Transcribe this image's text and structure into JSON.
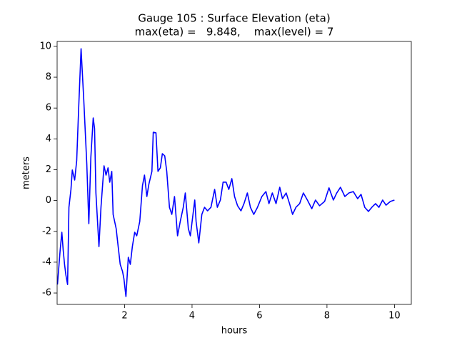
{
  "chart_data": {
    "type": "line",
    "title": [
      "Gauge 105 : Surface Elevation (eta)",
      "max(eta) =   9.848,    max(level) = 7"
    ],
    "xlabel": "hours",
    "ylabel": "meters",
    "x": [
      0.01,
      0.09,
      0.14,
      0.18,
      0.22,
      0.26,
      0.31,
      0.35,
      0.41,
      0.45,
      0.52,
      0.58,
      0.64,
      0.71,
      0.79,
      0.88,
      0.94,
      1.0,
      1.07,
      1.11,
      1.15,
      1.24,
      1.3,
      1.39,
      1.45,
      1.51,
      1.56,
      1.62,
      1.66,
      1.75,
      1.81,
      1.87,
      1.94,
      1.98,
      2.04,
      2.11,
      2.17,
      2.23,
      2.3,
      2.36,
      2.45,
      2.53,
      2.59,
      2.66,
      2.72,
      2.81,
      2.85,
      2.93,
      2.99,
      3.06,
      3.12,
      3.19,
      3.25,
      3.33,
      3.4,
      3.48,
      3.57,
      3.65,
      3.74,
      3.8,
      3.89,
      3.95,
      4.08,
      4.12,
      4.2,
      4.29,
      4.37,
      4.46,
      4.56,
      4.67,
      4.75,
      4.84,
      4.92,
      5.01,
      5.09,
      5.18,
      5.26,
      5.35,
      5.45,
      5.54,
      5.64,
      5.73,
      5.83,
      5.94,
      6.07,
      6.19,
      6.28,
      6.38,
      6.49,
      6.6,
      6.68,
      6.79,
      6.89,
      6.98,
      7.08,
      7.19,
      7.3,
      7.42,
      7.55,
      7.66,
      7.78,
      7.93,
      8.06,
      8.19,
      8.29,
      8.4,
      8.53,
      8.65,
      8.78,
      8.91,
      9.01,
      9.12,
      9.23,
      9.33,
      9.44,
      9.54,
      9.65,
      9.75,
      9.88,
      10.0
    ],
    "series": [
      {
        "color": "#0000ff",
        "values": [
          -5.45,
          -3.22,
          -2.06,
          -3.22,
          -4.14,
          -4.84,
          -5.45,
          -0.44,
          0.72,
          1.98,
          1.33,
          2.58,
          6.06,
          9.848,
          6.52,
          2.35,
          -1.5,
          2.81,
          5.36,
          4.67,
          0.49,
          -2.99,
          -0.44,
          2.25,
          1.65,
          2.12,
          1.19,
          1.89,
          -0.9,
          -1.82,
          -2.99,
          -4.14,
          -4.61,
          -5.07,
          -6.23,
          -3.68,
          -4.14,
          -2.99,
          -2.06,
          -2.29,
          -1.36,
          0.96,
          1.65,
          0.26,
          1.06,
          1.89,
          4.43,
          4.39,
          1.89,
          2.12,
          3.04,
          2.9,
          1.89,
          -0.44,
          -0.9,
          0.26,
          -2.29,
          -1.36,
          -0.44,
          0.49,
          -1.82,
          -2.29,
          0.03,
          -1.36,
          -2.75,
          -0.9,
          -0.44,
          -0.67,
          -0.44,
          0.72,
          -0.44,
          0.03,
          1.19,
          1.19,
          0.72,
          1.42,
          0.26,
          -0.34,
          -0.67,
          -0.2,
          0.49,
          -0.44,
          -0.9,
          -0.44,
          0.26,
          0.58,
          -0.2,
          0.49,
          -0.2,
          0.86,
          0.12,
          0.49,
          -0.2,
          -0.9,
          -0.44,
          -0.2,
          0.49,
          0.03,
          -0.53,
          0.03,
          -0.34,
          -0.06,
          0.82,
          0.03,
          0.49,
          0.86,
          0.26,
          0.49,
          0.58,
          0.12,
          0.4,
          -0.44,
          -0.71,
          -0.44,
          -0.2,
          -0.44,
          0.03,
          -0.3,
          -0.06,
          0.03
        ]
      }
    ],
    "xlim": [
      0,
      10.5
    ],
    "xticks": [
      2,
      4,
      6,
      8,
      10
    ],
    "ylim": [
      -6.74,
      10.32
    ],
    "yticks": [
      -6,
      -4,
      -2,
      0,
      2,
      4,
      6,
      8,
      10
    ]
  }
}
